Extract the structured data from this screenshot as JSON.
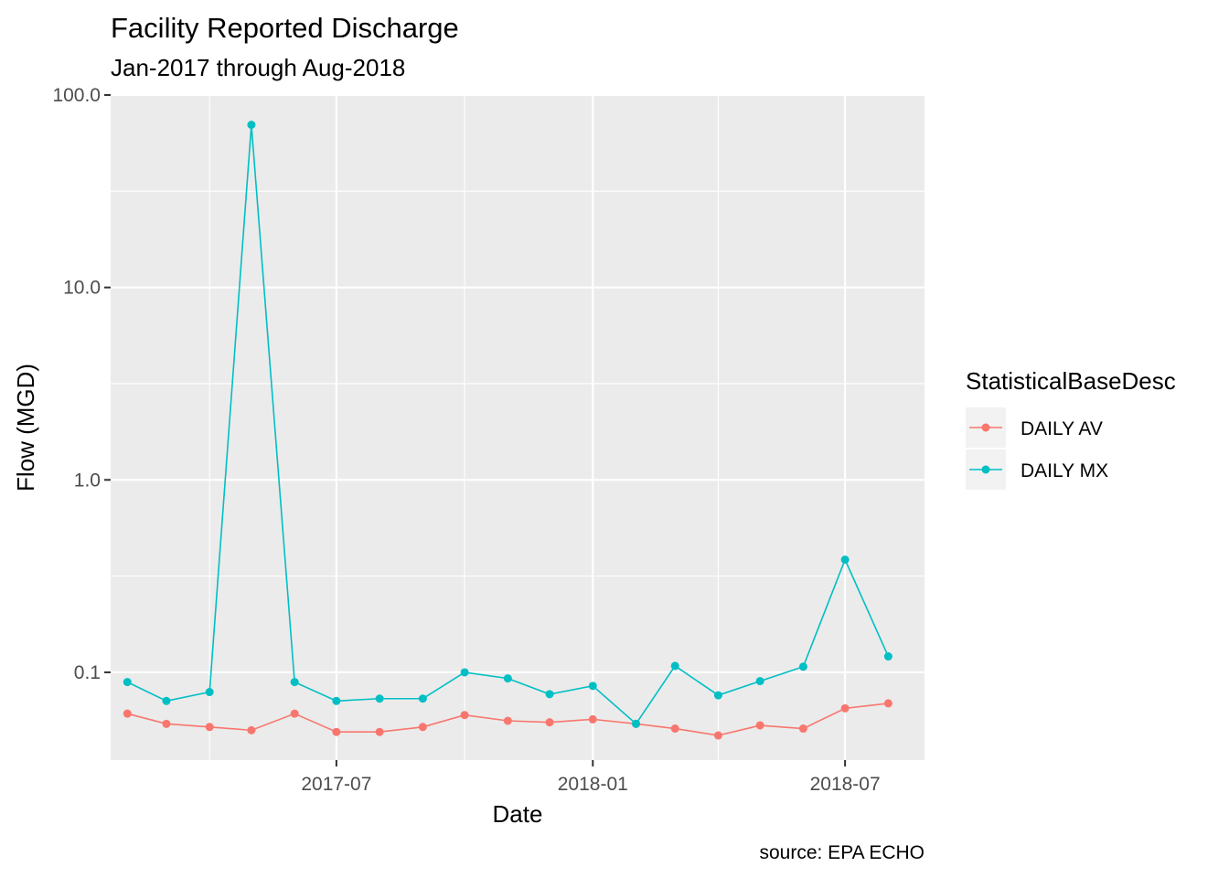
{
  "chart_data": {
    "type": "line",
    "title": "Facility Reported Discharge",
    "subtitle": "Jan-2017 through Aug-2018",
    "xlabel": "Date",
    "ylabel": "Flow (MGD)",
    "caption": "source: EPA ECHO",
    "y_scale": "log10",
    "ylim": [
      0.035,
      100
    ],
    "xlim": [
      "2017-01-20",
      "2018-08-27"
    ],
    "x_ticks": [
      {
        "date": "2017-07-01",
        "label": "2017-07"
      },
      {
        "date": "2018-01-01",
        "label": "2018-01"
      },
      {
        "date": "2018-07-01",
        "label": "2018-07"
      }
    ],
    "x_minor_ticks": [
      "2017-04-01",
      "2017-10-01",
      "2018-04-01"
    ],
    "y_ticks": [
      {
        "value": 0.1,
        "label": "0.1"
      },
      {
        "value": 1,
        "label": "1.0"
      },
      {
        "value": 10,
        "label": "10.0"
      },
      {
        "value": 100,
        "label": "100.0"
      }
    ],
    "grid": true,
    "legend": {
      "title": "StatisticalBaseDesc",
      "position": "right"
    },
    "x": [
      "2017-02-01",
      "2017-03-01",
      "2017-04-01",
      "2017-05-01",
      "2017-06-01",
      "2017-07-01",
      "2017-08-01",
      "2017-09-01",
      "2017-10-01",
      "2017-11-01",
      "2017-12-01",
      "2018-01-01",
      "2018-02-01",
      "2018-03-01",
      "2018-04-01",
      "2018-05-01",
      "2018-06-01",
      "2018-07-01",
      "2018-08-01"
    ],
    "series": [
      {
        "name": "DAILY AV",
        "color": "#F8766D",
        "values": [
          0.061,
          0.054,
          0.052,
          0.05,
          0.061,
          0.049,
          0.049,
          0.052,
          0.06,
          0.056,
          0.055,
          0.057,
          0.054,
          0.051,
          0.047,
          0.053,
          0.051,
          0.065,
          0.069
        ]
      },
      {
        "name": "DAILY MX",
        "color": "#00BFC4",
        "values": [
          0.089,
          0.071,
          0.079,
          70,
          0.089,
          0.071,
          0.073,
          0.073,
          0.1,
          0.093,
          0.077,
          0.085,
          0.054,
          0.108,
          0.076,
          0.09,
          0.107,
          0.385,
          0.121
        ]
      }
    ]
  }
}
